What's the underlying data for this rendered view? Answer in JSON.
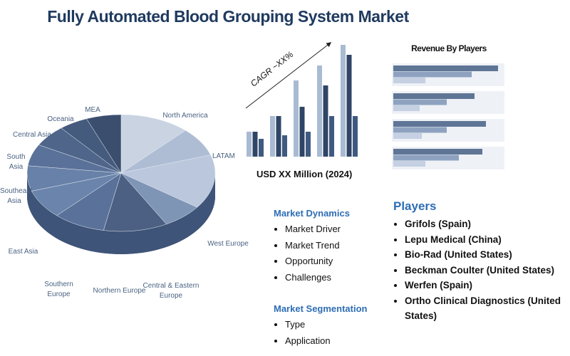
{
  "title": "Fully Automated Blood Grouping System Market",
  "chart_data": [
    {
      "type": "pie",
      "categories": [
        "North America",
        "LATAM",
        "West Europe",
        "Central & Eastern Europe",
        "Northern Europe",
        "Southern Europe",
        "East Asia",
        "Southeast Asia",
        "South Asia",
        "Central Asia",
        "Oceania",
        "MEA"
      ],
      "values": [
        12,
        8,
        15,
        7,
        11,
        9,
        8,
        7,
        6,
        6,
        5,
        6
      ],
      "colors": [
        "#c9d3e2",
        "#aebdd4",
        "#bac7dc",
        "#7f95b6",
        "#4b6082",
        "#5a729a",
        "#6b84ab",
        "#6781a8",
        "#5a7199",
        "#4f658a",
        "#455b7e",
        "#3b4e6d"
      ]
    },
    {
      "type": "bar",
      "annotation": "CAGR ~XX%",
      "x_label": "USD XX Million (2024)",
      "ylim": [
        0,
        160
      ],
      "series": [
        {
          "color": "#a9bad3",
          "values": [
            35,
            57,
            107,
            128,
            157
          ]
        },
        {
          "color": "#2f4566",
          "values": [
            35,
            57,
            70,
            100,
            143
          ]
        },
        {
          "color": "#3f5a80",
          "values": [
            25,
            30,
            35,
            57,
            57
          ]
        }
      ]
    },
    {
      "type": "barh",
      "title": "Revenue By Players",
      "xlim": [
        0,
        150
      ],
      "series": [
        {
          "color": "#5f7596",
          "values": [
            147,
            114,
            130,
            125
          ]
        },
        {
          "color": "#8ea2c0",
          "values": [
            110,
            75,
            75,
            92
          ]
        },
        {
          "color": "#c5d0e2",
          "values": [
            45,
            37,
            40,
            45
          ]
        }
      ]
    }
  ],
  "market_dynamics": {
    "title": "Market Dynamics",
    "items": [
      "Market Driver",
      "Market Trend",
      "Opportunity",
      "Challenges"
    ]
  },
  "market_segmentation": {
    "title": "Market Segmentation",
    "items": [
      "Type",
      "Application"
    ]
  },
  "players": {
    "title": "Players",
    "items": [
      "Grifols (Spain)",
      "Lepu Medical (China)",
      "Bio-Rad (United States)",
      "Beckman Coulter (United States)",
      "Werfen (Spain)",
      "Ortho Clinical Diagnostics (United States)"
    ]
  }
}
